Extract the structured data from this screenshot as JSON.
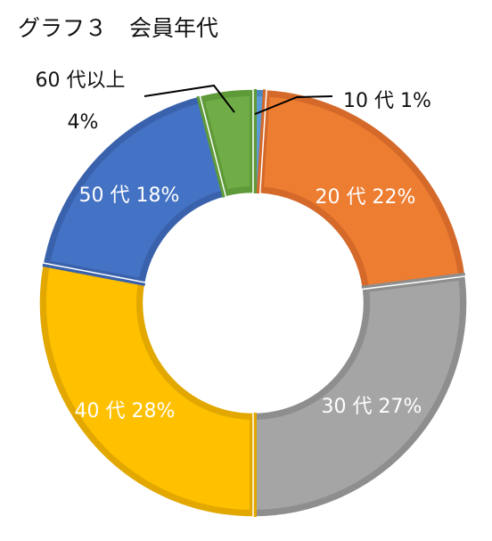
{
  "chart_data": {
    "type": "pie",
    "title": "グラフ３　会員年代",
    "donut": true,
    "start_angle_deg": 0,
    "direction": "clockwise",
    "slices": [
      {
        "category": "10 代",
        "value": 1,
        "percent_label": "1%",
        "color": "#5B9BD5",
        "border": "#4A86BE"
      },
      {
        "category": "20 代",
        "value": 22,
        "percent_label": "22%",
        "color": "#ED7D31",
        "border": "#D4692A"
      },
      {
        "category": "30 代",
        "value": 27,
        "percent_label": "27%",
        "color": "#A5A5A5",
        "border": "#8E8E8E"
      },
      {
        "category": "40 代",
        "value": 28,
        "percent_label": "28%",
        "color": "#FFC000",
        "border": "#E2A800"
      },
      {
        "category": "50 代",
        "value": 18,
        "percent_label": "18%",
        "color": "#4472C4",
        "border": "#3A62AC"
      },
      {
        "category": "60 代以上",
        "value": 4,
        "percent_label": "4%",
        "color": "#70AD47",
        "border": "#5E9A38"
      }
    ],
    "legend": "none",
    "label_colors": {
      "inside": "#ffffff",
      "outside": "#111111"
    }
  }
}
